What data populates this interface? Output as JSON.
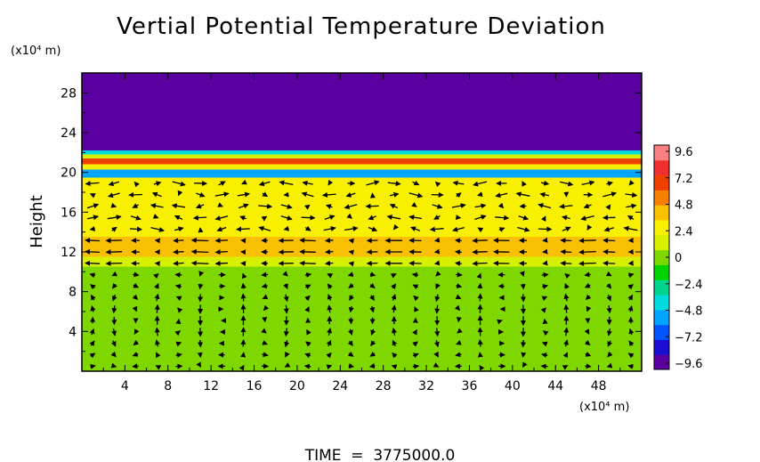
{
  "chart_data": {
    "type": "heatmap",
    "title": "Vertial Potential Temperature Deviation",
    "ylabel": "Height",
    "y_unit": "(x10⁴ m)",
    "x_unit": "(x10⁴ m)",
    "footer": "TIME  =  3775000.0",
    "xlim": [
      0,
      52
    ],
    "ylim": [
      0,
      30
    ],
    "x_ticks": [
      "4",
      "8",
      "12",
      "16",
      "20",
      "24",
      "28",
      "32",
      "36",
      "40",
      "44",
      "48"
    ],
    "y_ticks": [
      "4",
      "8",
      "12",
      "16",
      "20",
      "24",
      "28"
    ],
    "colorbar": {
      "ticks": [
        "9.6",
        "7.2",
        "4.8",
        "2.4",
        "0",
        "−2.4",
        "−4.8",
        "−7.2",
        "−9.6"
      ],
      "range": [
        -9.6,
        9.6
      ],
      "colors": [
        "#5a00a0",
        "#1a0fd0",
        "#0055ff",
        "#00a5ff",
        "#00dcdc",
        "#00d48c",
        "#00d400",
        "#7ed800",
        "#d8f000",
        "#f8f000",
        "#f8c000",
        "#f88000",
        "#f04000",
        "#f03030",
        "#f88080"
      ]
    },
    "field": {
      "description_layers": [
        {
          "y_from": 0,
          "y_to": 10.5,
          "value": 0.2
        },
        {
          "y_from": 10.5,
          "y_to": 11.5,
          "value": 1.6
        },
        {
          "y_from": 11.5,
          "y_to": 13.5,
          "value": 3.6
        },
        {
          "y_from": 13.5,
          "y_to": 19.5,
          "value": 3.0
        },
        {
          "y_from": 19.5,
          "y_to": 20.3,
          "value": -4.8
        },
        {
          "y_from": 20.3,
          "y_to": 20.8,
          "value": 2.6
        },
        {
          "y_from": 20.8,
          "y_to": 21.4,
          "value": 6.5
        },
        {
          "y_from": 21.4,
          "y_to": 21.8,
          "value": 1.0
        },
        {
          "y_from": 21.8,
          "y_to": 22.2,
          "value": -4.0
        },
        {
          "y_from": 22.2,
          "y_to": 30,
          "value": -9.6
        }
      ]
    },
    "vectors": {
      "x_spacing": 2,
      "y_spacing": 1.15,
      "y_min": 0.5,
      "y_max": 19.5,
      "lower_cells": 7,
      "upper_level_speed": 1.4
    }
  }
}
